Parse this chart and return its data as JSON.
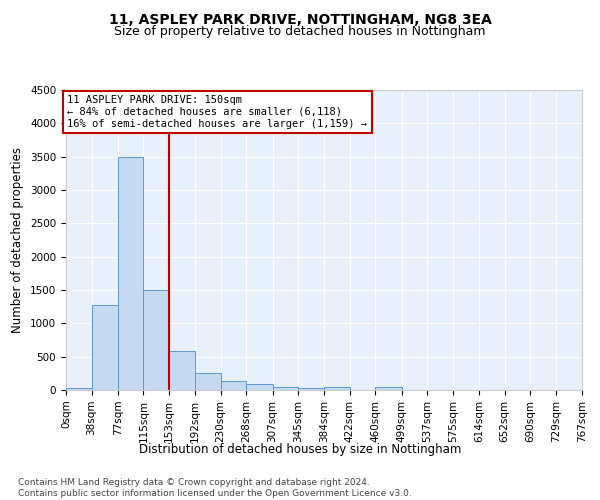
{
  "title": "11, ASPLEY PARK DRIVE, NOTTINGHAM, NG8 3EA",
  "subtitle": "Size of property relative to detached houses in Nottingham",
  "xlabel": "Distribution of detached houses by size in Nottingham",
  "ylabel": "Number of detached properties",
  "bin_edges": [
    0,
    38,
    77,
    115,
    153,
    192,
    230,
    268,
    307,
    345,
    384,
    422,
    460,
    499,
    537,
    575,
    614,
    652,
    690,
    729,
    767
  ],
  "bar_heights": [
    30,
    1270,
    3500,
    1500,
    580,
    250,
    140,
    90,
    50,
    30,
    50,
    0,
    50,
    0,
    0,
    0,
    0,
    0,
    0,
    0
  ],
  "bar_color": "#c5d9f1",
  "bar_edgecolor": "#5b9bd5",
  "property_line_x": 153,
  "property_line_color": "#c00000",
  "annotation_line1": "11 ASPLEY PARK DRIVE: 150sqm",
  "annotation_line2": "← 84% of detached houses are smaller (6,118)",
  "annotation_line3": "16% of semi-detached houses are larger (1,159) →",
  "annotation_box_color": "#c00000",
  "ylim": [
    0,
    4500
  ],
  "yticks": [
    0,
    500,
    1000,
    1500,
    2000,
    2500,
    3000,
    3500,
    4000,
    4500
  ],
  "tick_labels": [
    "0sqm",
    "38sqm",
    "77sqm",
    "115sqm",
    "153sqm",
    "192sqm",
    "230sqm",
    "268sqm",
    "307sqm",
    "345sqm",
    "384sqm",
    "422sqm",
    "460sqm",
    "499sqm",
    "537sqm",
    "575sqm",
    "614sqm",
    "652sqm",
    "690sqm",
    "729sqm",
    "767sqm"
  ],
  "footnote": "Contains HM Land Registry data © Crown copyright and database right 2024.\nContains public sector information licensed under the Open Government Licence v3.0.",
  "background_color": "#e8f0fb",
  "title_fontsize": 10,
  "subtitle_fontsize": 9,
  "axis_label_fontsize": 8.5,
  "tick_fontsize": 7.5,
  "annotation_fontsize": 7.5,
  "footnote_fontsize": 6.5
}
